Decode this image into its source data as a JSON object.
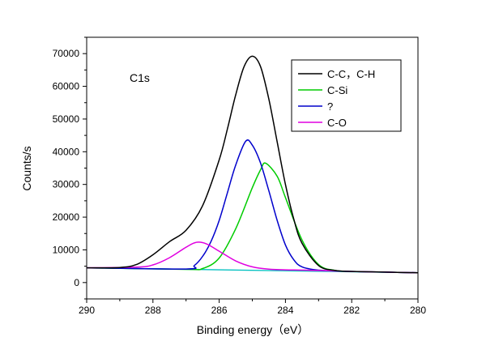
{
  "chart_data": {
    "type": "line",
    "xlabel": "Binding energy（eV）",
    "ylabel": "Counts/s",
    "annotation": "C1s",
    "xlim": [
      290,
      280
    ],
    "ylim": [
      -5000,
      75000
    ],
    "x_reversed": true,
    "x_ticks": [
      "290",
      "288",
      "286",
      "284",
      "282",
      "280"
    ],
    "x_tick_values": [
      290,
      288,
      286,
      284,
      282,
      280
    ],
    "y_ticks": [
      "0",
      "10000",
      "20000",
      "30000",
      "40000",
      "50000",
      "60000",
      "70000"
    ],
    "y_tick_values": [
      0,
      10000,
      20000,
      30000,
      40000,
      50000,
      60000,
      70000
    ],
    "legend_position": "top-right",
    "baseline": {
      "color": "#00c0c0",
      "points": [
        [
          290,
          4500
        ],
        [
          280,
          3000
        ]
      ]
    },
    "series": [
      {
        "name": "C-C，C-H",
        "color": "#000000",
        "x": [
          290,
          289,
          288.5,
          288,
          287.5,
          287,
          286.5,
          286,
          285.75,
          285.5,
          285.25,
          285,
          284.75,
          284.5,
          284.25,
          284,
          283.75,
          283.5,
          283,
          282.5,
          282,
          281,
          280
        ],
        "y": [
          4500,
          4600,
          5500,
          8500,
          12500,
          16000,
          23500,
          37500,
          47000,
          57500,
          66000,
          69200,
          66000,
          56000,
          43000,
          30000,
          19500,
          12000,
          5200,
          3700,
          3400,
          3200,
          3000
        ]
      },
      {
        "name": "C-Si",
        "color": "#00cc00",
        "x": [
          290,
          287,
          286.5,
          286,
          285.5,
          285,
          284.75,
          284.6,
          284.25,
          284,
          283.5,
          283,
          282.5,
          282,
          281,
          280
        ],
        "y": [
          4500,
          4050,
          4300,
          7500,
          16500,
          29000,
          34500,
          36500,
          32500,
          26000,
          13000,
          5500,
          3700,
          3400,
          3200,
          3000
        ]
      },
      {
        "name": "?",
        "color": "#0000cc",
        "x": [
          290,
          287,
          286.75,
          286.5,
          286.25,
          286,
          285.75,
          285.5,
          285.2,
          285,
          284.75,
          284.5,
          284.25,
          284,
          283.75,
          283.5,
          283,
          282,
          281,
          280
        ],
        "y": [
          4500,
          4150,
          5200,
          8000,
          12500,
          19000,
          27500,
          36000,
          43200,
          42000,
          36500,
          28000,
          19000,
          11500,
          7000,
          4800,
          3800,
          3400,
          3200,
          3000
        ]
      },
      {
        "name": "C-O",
        "color": "#e000e0",
        "x": [
          290,
          288.5,
          288,
          287.5,
          287,
          286.7,
          286.4,
          286,
          285.5,
          285,
          284.5,
          284,
          283,
          282,
          281,
          280
        ],
        "y": [
          4500,
          4700,
          5400,
          7600,
          10800,
          12300,
          11900,
          9600,
          6600,
          4800,
          4100,
          3900,
          3700,
          3400,
          3200,
          3000
        ]
      }
    ]
  }
}
